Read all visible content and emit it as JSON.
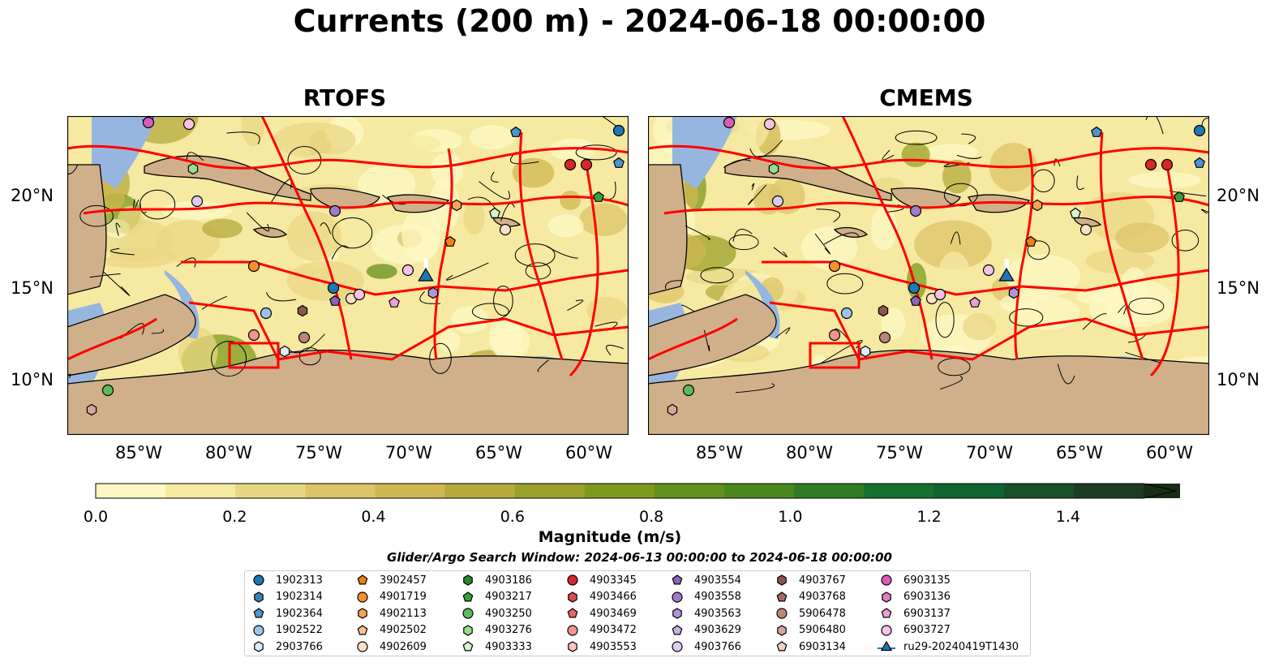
{
  "title": "Currents (200 m) - 2024-06-18 00:00:00",
  "panels": [
    {
      "title": "RTOFS"
    },
    {
      "title": "CMEMS"
    }
  ],
  "lon_ticks": [
    "85°W",
    "80°W",
    "75°W",
    "70°W",
    "65°W",
    "60°W"
  ],
  "lat_ticks": [
    "20°N",
    "15°N",
    "10°N"
  ],
  "colorbar": {
    "label": "Magnitude (m/s)",
    "ticks": [
      "0.0",
      "0.2",
      "0.4",
      "0.6",
      "0.8",
      "1.0",
      "1.2",
      "1.4"
    ],
    "range": [
      0,
      1.6
    ],
    "colors": [
      "#fef8c4",
      "#f6e9a1",
      "#ead785",
      "#dcc46a",
      "#cfb752",
      "#b6aa3d",
      "#9aa02a",
      "#7d9a1e",
      "#62901c",
      "#4a871f",
      "#2f7c24",
      "#17702d",
      "#0f632f",
      "#1a4f2b",
      "#1b3c22",
      "#1a2c17"
    ]
  },
  "search_window": "Glider/Argo Search Window: 2024-06-13 00:00:00 to 2024-06-18 00:00:00",
  "legend": [
    {
      "label": "1902313",
      "marker": "circle",
      "color": "#1f77b4"
    },
    {
      "label": "1902314",
      "marker": "hexagon",
      "color": "#3a7fb5"
    },
    {
      "label": "1902364",
      "marker": "pentagon",
      "color": "#4f93d0"
    },
    {
      "label": "1902522",
      "marker": "circle",
      "color": "#9cc4ea"
    },
    {
      "label": "2903766",
      "marker": "hexagon",
      "color": "#dcecfa"
    },
    {
      "label": "3902457",
      "marker": "pentagon",
      "color": "#f07e18"
    },
    {
      "label": "4901719",
      "marker": "circle",
      "color": "#f7902e"
    },
    {
      "label": "4902113",
      "marker": "hexagon",
      "color": "#f8a453"
    },
    {
      "label": "4902502",
      "marker": "pentagon",
      "color": "#fbc48e"
    },
    {
      "label": "4902609",
      "marker": "circle",
      "color": "#fde0c2"
    },
    {
      "label": "4903186",
      "marker": "hexagon",
      "color": "#2a8a2a"
    },
    {
      "label": "4903217",
      "marker": "pentagon",
      "color": "#3aa03a"
    },
    {
      "label": "4903250",
      "marker": "circle",
      "color": "#5dbb5d"
    },
    {
      "label": "4903276",
      "marker": "hexagon",
      "color": "#98dc8d"
    },
    {
      "label": "4903333",
      "marker": "pentagon",
      "color": "#d5f4c9"
    },
    {
      "label": "4903345",
      "marker": "circle",
      "color": "#d62728"
    },
    {
      "label": "4903466",
      "marker": "hexagon",
      "color": "#df4a4a"
    },
    {
      "label": "4903469",
      "marker": "pentagon",
      "color": "#e66565"
    },
    {
      "label": "4903472",
      "marker": "circle",
      "color": "#f29490"
    },
    {
      "label": "4903553",
      "marker": "hexagon",
      "color": "#fbc4c0"
    },
    {
      "label": "4903554",
      "marker": "pentagon",
      "color": "#8e62b8"
    },
    {
      "label": "4903558",
      "marker": "circle",
      "color": "#a07cc6"
    },
    {
      "label": "4903563",
      "marker": "hexagon",
      "color": "#b393d4"
    },
    {
      "label": "4903629",
      "marker": "pentagon",
      "color": "#c9b2e3"
    },
    {
      "label": "4903766",
      "marker": "circle",
      "color": "#dccdf0"
    },
    {
      "label": "4903767",
      "marker": "hexagon",
      "color": "#8c564b"
    },
    {
      "label": "4903768",
      "marker": "pentagon",
      "color": "#a46b60"
    },
    {
      "label": "5906478",
      "marker": "circle",
      "color": "#bf8578"
    },
    {
      "label": "5906480",
      "marker": "hexagon",
      "color": "#d8a59b"
    },
    {
      "label": "6903134",
      "marker": "pentagon",
      "color": "#f2cfc4"
    },
    {
      "label": "6903135",
      "marker": "circle",
      "color": "#d75db9"
    },
    {
      "label": "6903136",
      "marker": "hexagon",
      "color": "#e07cc7"
    },
    {
      "label": "6903137",
      "marker": "pentagon",
      "color": "#ec9ed7"
    },
    {
      "label": "6903727",
      "marker": "circle",
      "color": "#f6c2e6"
    },
    {
      "label": "ru29-20240419T1430",
      "marker": "triangle-line",
      "color": "#1f77b4"
    }
  ],
  "map_colors": {
    "land": "#cfb08a",
    "shelf_water": "#97b6df",
    "eez_lines": "#ff0000",
    "glider_track": "#ffffff"
  }
}
